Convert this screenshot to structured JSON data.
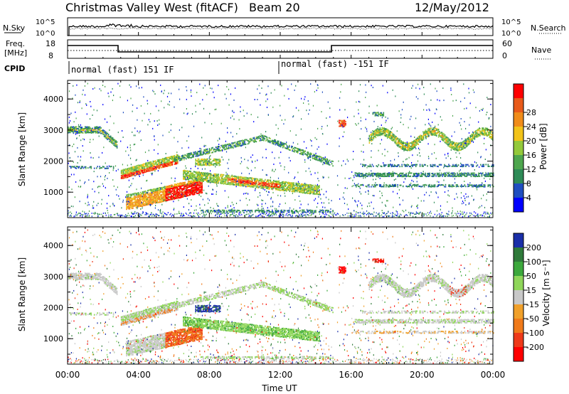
{
  "title": "Christmas Valley West (fitACF)",
  "beam": "Beam 20",
  "date": "12/May/2012",
  "nsky": {
    "left_label": "N.Sky",
    "right_label": "N.Search",
    "left_ticks": [
      "10^5",
      "10^0"
    ],
    "right_ticks": [
      "10^5",
      "10^0"
    ]
  },
  "freq": {
    "left_label_1": "Freq.",
    "left_label_2": "[MHz]",
    "right_label": "Nave",
    "left_ticks": [
      "18",
      "8"
    ],
    "right_ticks": [
      "60",
      "0"
    ]
  },
  "cpid": {
    "label": "CPID",
    "segments": [
      {
        "label": "normal (fast) 151 IF"
      },
      {
        "label": "normal (fast) -151 IF"
      }
    ]
  },
  "chart_data": [
    {
      "type": "heatmap",
      "title": "",
      "xlabel": "",
      "ylabel": "Slant Range [km]",
      "xlim": [
        0,
        24
      ],
      "ylim": [
        180,
        4600
      ],
      "yticks": [
        "1000",
        "2000",
        "3000",
        "4000"
      ],
      "colorbar": {
        "label": "Power [dB]",
        "ticks": [
          "4",
          "8",
          "12",
          "16",
          "20",
          "24",
          "28"
        ],
        "colors": [
          "#0000ff",
          "#1f4ec0",
          "#2e8b57",
          "#4ea64e",
          "#93c93a",
          "#f2c31a",
          "#f08c1a",
          "#e85a1a",
          "#ff0000"
        ]
      }
    },
    {
      "type": "heatmap",
      "title": "",
      "xlabel": "Time UT",
      "ylabel": "Slant Range [km]",
      "xlim": [
        0,
        24
      ],
      "ylim": [
        180,
        4600
      ],
      "xticks": [
        "00:00",
        "04:00",
        "08:00",
        "12:00",
        "16:00",
        "20:00",
        "00:00"
      ],
      "yticks": [
        "1000",
        "2000",
        "3000",
        "4000"
      ],
      "colorbar": {
        "label": "Velocity [m s⁻¹]",
        "ticks": [
          "200",
          "100",
          "50",
          "15",
          "-15",
          "-50",
          "-100",
          "-200"
        ],
        "colors": [
          "#1a2ea8",
          "#2f7a3a",
          "#3ca83c",
          "#8fd65a",
          "#c8c8c8",
          "#f0a02a",
          "#f07a1a",
          "#ee3a1a",
          "#ff0000"
        ]
      }
    }
  ]
}
